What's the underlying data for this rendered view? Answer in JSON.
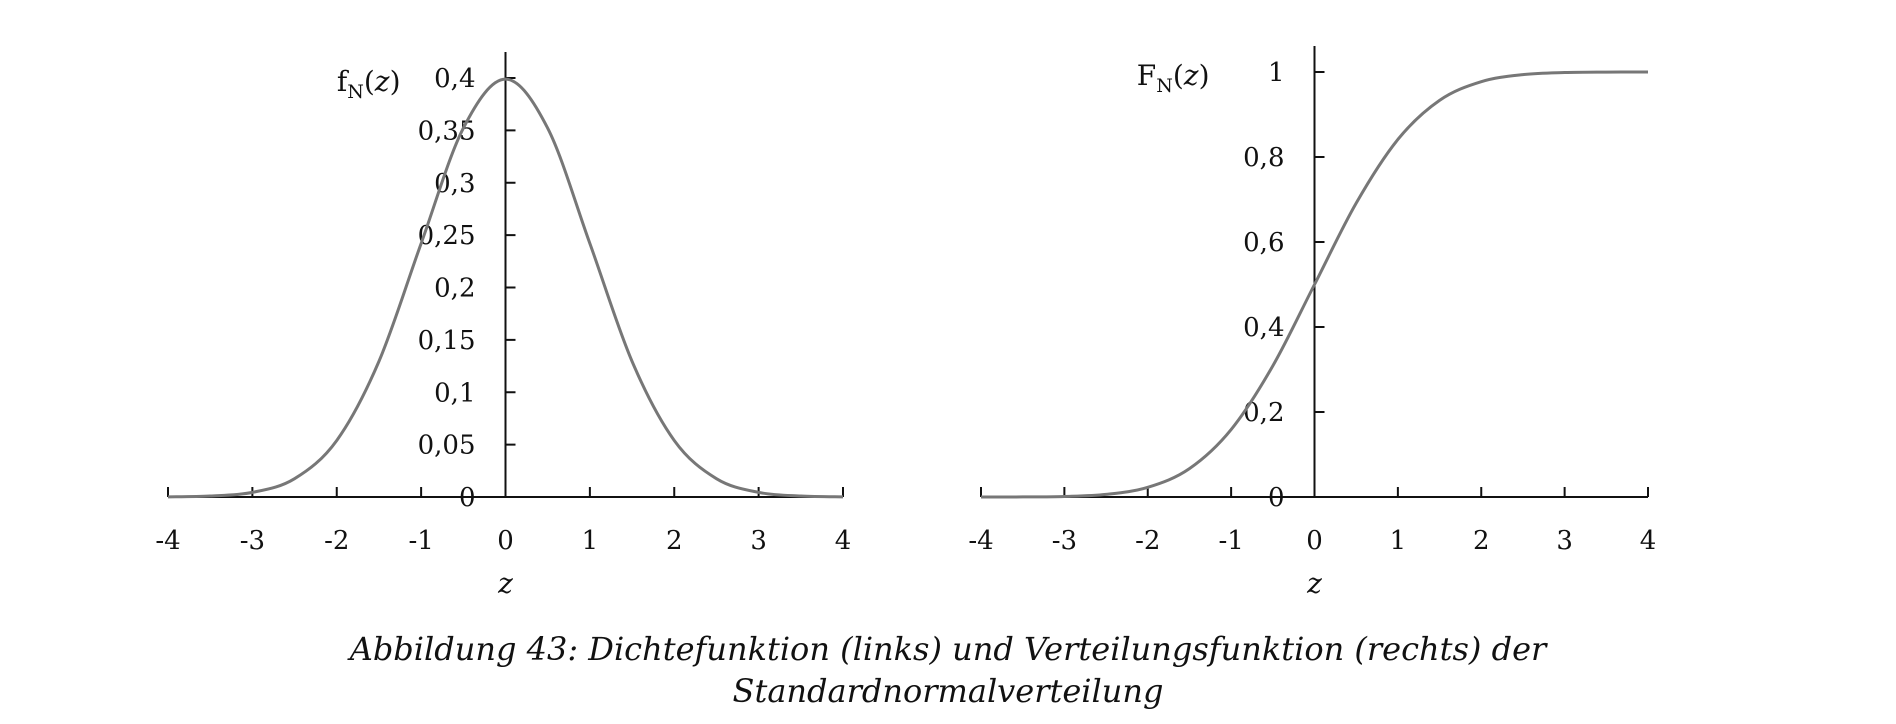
{
  "caption": {
    "line1": "Abbildung 43: Dichtefunktion (links) und Verteilungsfunktion (rechts) der",
    "line2": "Standardnormalverteilung"
  },
  "chart_data": [
    {
      "type": "line",
      "title": "",
      "xlabel": "z",
      "ylabel": {
        "base": "f",
        "sub": "N",
        "arg": "z"
      },
      "xlim": [
        -4,
        4
      ],
      "ylim": [
        0,
        0.4
      ],
      "xticks": [
        -4,
        -3,
        -2,
        -1,
        0,
        1,
        2,
        3,
        4
      ],
      "xtick_labels": [
        "-4",
        "-3",
        "-2",
        "-1",
        "0",
        "1",
        "2",
        "3",
        "4"
      ],
      "yticks": [
        0,
        0.05,
        0.1,
        0.15,
        0.2,
        0.25,
        0.3,
        0.35,
        0.4
      ],
      "ytick_labels": [
        "0",
        "0,05",
        "0,1",
        "0,15",
        "0,2",
        "0,25",
        "0,3",
        "0,35",
        "0,4"
      ],
      "grid": false,
      "legend": "none",
      "line_color": "#777777",
      "series": [
        {
          "x": [
            -4,
            -3.5,
            -3,
            -2.5,
            -2,
            -1.5,
            -1,
            -0.5,
            0,
            0.5,
            1,
            1.5,
            2,
            2.5,
            3,
            3.5,
            4
          ],
          "values": [
            0.0001,
            0.0009,
            0.0044,
            0.0175,
            0.054,
            0.1295,
            0.242,
            0.3521,
            0.3989,
            0.3521,
            0.242,
            0.1295,
            0.054,
            0.0175,
            0.0044,
            0.0009,
            0.0001
          ]
        }
      ]
    },
    {
      "type": "line",
      "title": "",
      "xlabel": "z",
      "ylabel": {
        "base": "F",
        "sub": "N",
        "arg": "z"
      },
      "xlim": [
        -4,
        4
      ],
      "ylim": [
        0,
        1
      ],
      "xticks": [
        -4,
        -3,
        -2,
        -1,
        0,
        1,
        2,
        3,
        4
      ],
      "xtick_labels": [
        "-4",
        "-3",
        "-2",
        "-1",
        "0",
        "1",
        "2",
        "3",
        "4"
      ],
      "yticks": [
        0,
        0.2,
        0.4,
        0.6,
        0.8,
        1
      ],
      "ytick_labels": [
        "0",
        "0,2",
        "0,4",
        "0,6",
        "0,8",
        "1"
      ],
      "grid": false,
      "legend": "none",
      "line_color": "#777777",
      "series": [
        {
          "x": [
            -4,
            -3.5,
            -3,
            -2.5,
            -2,
            -1.5,
            -1,
            -0.5,
            0,
            0.5,
            1,
            1.5,
            2,
            2.5,
            3,
            3.5,
            4
          ],
          "values": [
            3e-05,
            0.0002,
            0.0013,
            0.0062,
            0.0228,
            0.0668,
            0.1587,
            0.3085,
            0.5,
            0.6915,
            0.8413,
            0.9332,
            0.9772,
            0.9938,
            0.9987,
            0.9998,
            0.99997
          ]
        }
      ]
    }
  ]
}
